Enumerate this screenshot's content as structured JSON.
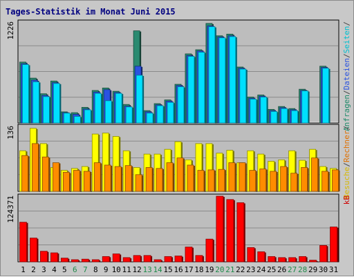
{
  "chart_data": {
    "type": "bar",
    "title": "Tages-Statistik im Monat Juni 2015",
    "categories": [
      "1",
      "2",
      "3",
      "4",
      "5",
      "6",
      "7",
      "8",
      "9",
      "10",
      "11",
      "12",
      "13",
      "14",
      "15",
      "16",
      "17",
      "18",
      "19",
      "20",
      "21",
      "22",
      "23",
      "24",
      "25",
      "26",
      "27",
      "28",
      "29",
      "30",
      "31"
    ],
    "weekend_days": [
      "6",
      "7",
      "13",
      "14",
      "20",
      "21",
      "27",
      "28"
    ],
    "panels": [
      {
        "name": "top",
        "ymax_label": "1226",
        "ymax": 1226,
        "legend": [
          {
            "text": "Anfragen",
            "color": "#1f8a6a"
          },
          {
            "text": "/",
            "color": "#444444"
          },
          {
            "text": "Dateien",
            "color": "#2a52e0"
          },
          {
            "text": "/",
            "color": "#444444"
          },
          {
            "text": "Seiten",
            "color": "#00c0d0"
          },
          {
            "text": "/",
            "color": "#444444"
          }
        ],
        "series": [
          {
            "name": "Anfragen",
            "color": "#2a8a70",
            "values": [
              740,
              545,
              355,
              510,
              135,
              125,
              190,
              395,
              425,
              385,
              225,
              1120,
              150,
              235,
              280,
              470,
              840,
              890,
              1210,
              1060,
              1080,
              680,
              315,
              340,
              165,
              200,
              175,
              410,
              0,
              690,
              0
            ]
          },
          {
            "name": "Dateien",
            "color": "#2a52e0",
            "values": [
              720,
              520,
              335,
              490,
              125,
              105,
              170,
              375,
              405,
              370,
              205,
              690,
              135,
              220,
              265,
              455,
              820,
              875,
              1180,
              1045,
              1060,
              665,
              300,
              325,
              150,
              185,
              160,
              395,
              0,
              675,
              0
            ]
          },
          {
            "name": "Seiten",
            "color": "#00e0ff",
            "values": [
              710,
              500,
              320,
              480,
              120,
              80,
              160,
              360,
              270,
              360,
              195,
              580,
              120,
              210,
              250,
              440,
              810,
              860,
              1170,
              1035,
              1050,
              655,
              290,
              315,
              140,
              175,
              150,
              390,
              0,
              665,
              0
            ]
          }
        ]
      },
      {
        "name": "middle",
        "ymax_label": "136",
        "ymax": 136,
        "legend": [
          {
            "text": "Besuche",
            "color": "#d8b800"
          },
          {
            "text": "/",
            "color": "#444444"
          },
          {
            "text": "Rechner",
            "color": "#e07000"
          },
          {
            "text": "/",
            "color": "#444444"
          }
        ],
        "series": [
          {
            "name": "Besuche",
            "color": "#ffff00",
            "values": [
              85,
              132,
              100,
              50,
              44,
              48,
              52,
              120,
              122,
              115,
              85,
              50,
              78,
              78,
              88,
              104,
              66,
              100,
              100,
              80,
              86,
              60,
              85,
              78,
              63,
              66,
              85,
              65,
              88,
              52,
              48
            ]
          },
          {
            "name": "Rechner",
            "color": "#ff8c00",
            "values": [
              75,
              100,
              72,
              60,
              40,
              44,
              42,
              60,
              55,
              52,
              54,
              35,
              50,
              48,
              60,
              70,
              55,
              44,
              45,
              46,
              60,
              60,
              44,
              47,
              42,
              52,
              38,
              50,
              70,
              42,
              45
            ]
          }
        ]
      },
      {
        "name": "bottom",
        "ymax_label": "124371",
        "ymax": 124371,
        "legend": [
          {
            "text": "kB",
            "color": "#d00000"
          }
        ],
        "series": [
          {
            "name": "kB",
            "color": "#ff0000",
            "values": [
              75000,
              45000,
              20000,
              17000,
              7000,
              4000,
              5000,
              4000,
              10000,
              15000,
              8000,
              12000,
              12000,
              4000,
              10000,
              11000,
              28000,
              12000,
              43000,
              124371,
              118000,
              112000,
              27000,
              19000,
              10000,
              8000,
              8000,
              10000,
              3000,
              31000,
              66000
            ]
          }
        ]
      }
    ]
  }
}
